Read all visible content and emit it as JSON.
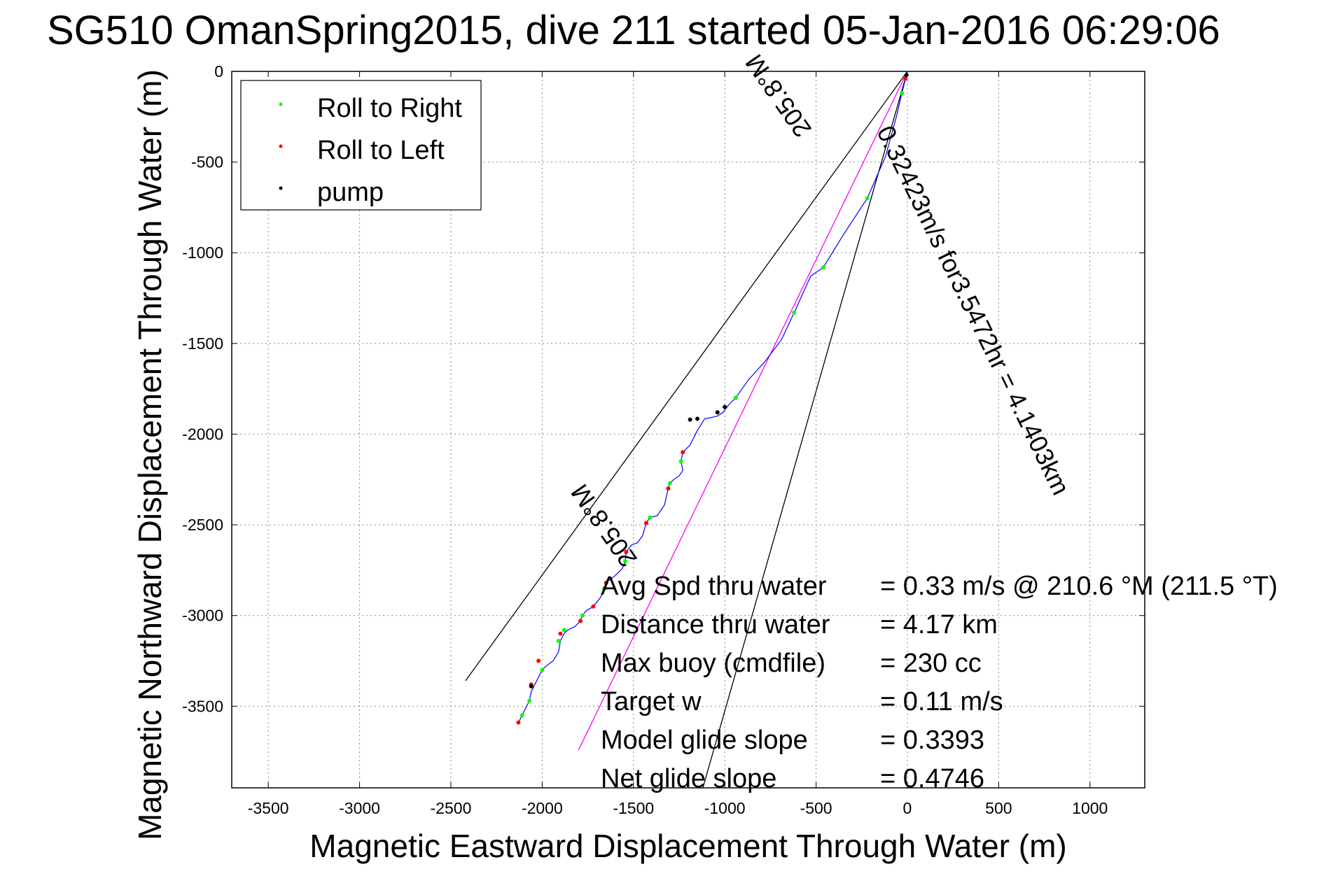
{
  "chart_data": {
    "type": "scatter",
    "title": "SG510 OmanSpring2015, dive 211 started 05-Jan-2016 06:29:06",
    "xlabel": "Magnetic Eastward Displacement Through Water (m)",
    "ylabel": "Magnetic Northward Displacement Through Water (m)",
    "xlim": [
      -3700,
      1300
    ],
    "ylim": [
      -3950,
      0
    ],
    "xticks": [
      -3500,
      -3000,
      -2500,
      -2000,
      -1500,
      -1000,
      -500,
      0,
      500,
      1000
    ],
    "yticks": [
      0,
      -500,
      -1000,
      -1500,
      -2000,
      -2500,
      -3000,
      -3500
    ],
    "grid": true,
    "legend_position": "top-left",
    "track": {
      "color": "#0000ff",
      "x": [
        0,
        -30,
        -60,
        -120,
        -220,
        -350,
        -460,
        -530,
        -620,
        -690,
        -780,
        -870,
        -940,
        -980,
        -1010,
        -1040,
        -1080,
        -1110,
        -1150,
        -1190,
        -1230,
        -1240,
        -1230,
        -1250,
        -1280,
        -1300,
        -1310,
        -1330,
        -1370,
        -1410,
        -1430,
        -1450,
        -1480,
        -1510,
        -1540,
        -1545,
        -1560,
        -1600,
        -1640,
        -1650,
        -1660,
        -1680,
        -1720,
        -1760,
        -1780,
        -1790,
        -1820,
        -1860,
        -1880,
        -1900,
        -1910,
        -1940,
        -1980,
        -2000,
        -2020,
        -2040,
        -2060,
        -2070,
        -2090,
        -2110,
        -2130
      ],
      "y": [
        0,
        -120,
        -250,
        -470,
        -700,
        -900,
        -1080,
        -1130,
        -1330,
        -1480,
        -1600,
        -1700,
        -1800,
        -1840,
        -1880,
        -1900,
        -1910,
        -1915,
        -1980,
        -2060,
        -2100,
        -2150,
        -2200,
        -2230,
        -2250,
        -2270,
        -2300,
        -2390,
        -2450,
        -2460,
        -2490,
        -2560,
        -2600,
        -2610,
        -2650,
        -2700,
        -2740,
        -2780,
        -2810,
        -2820,
        -2850,
        -2900,
        -2950,
        -2975,
        -3000,
        -3030,
        -3060,
        -3080,
        -3100,
        -3140,
        -3200,
        -3250,
        -3280,
        -3300,
        -3340,
        -3380,
        -3420,
        -3470,
        -3510,
        -3550,
        -3590
      ]
    },
    "series": [
      {
        "name": "Roll to Right",
        "color": "#00ff00",
        "x": [
          -30,
          -220,
          -460,
          -620,
          -940,
          -1240,
          -1300,
          -1410,
          -1545,
          -1660,
          -1780,
          -1880,
          -1910,
          -2000,
          -2070,
          -2110
        ],
        "y": [
          -120,
          -700,
          -1080,
          -1330,
          -1800,
          -2150,
          -2270,
          -2460,
          -2700,
          -2850,
          -3000,
          -3080,
          -3140,
          -3300,
          -3470,
          -3550
        ]
      },
      {
        "name": "Roll to Left",
        "color": "#ff0000",
        "x": [
          -10,
          -1230,
          -1310,
          -1430,
          -1540,
          -1650,
          -1720,
          -1790,
          -1900,
          -2020,
          -2060,
          -2130
        ],
        "y": [
          -40,
          -2100,
          -2300,
          -2490,
          -2650,
          -2820,
          -2950,
          -3030,
          -3100,
          -3250,
          -3380,
          -3590
        ]
      },
      {
        "name": "pump",
        "color": "#000000",
        "x": [
          -5,
          -1000,
          -1040,
          -1150,
          -1190,
          -2060
        ],
        "y": [
          -20,
          -1850,
          -1880,
          -1915,
          -1920,
          -3390
        ]
      }
    ],
    "lines": [
      {
        "name": "heading",
        "color": "#ff00ff",
        "x": [
          0,
          -1800
        ],
        "y": [
          0,
          -3740
        ]
      },
      {
        "name": "cone-left",
        "color": "#000000",
        "x": [
          0,
          -2420
        ],
        "y": [
          0,
          -3360
        ]
      },
      {
        "name": "cone-right",
        "color": "#000000",
        "x": [
          0,
          -1120
        ],
        "y": [
          0,
          -3950
        ]
      }
    ],
    "rotated_annotations": [
      {
        "text": "0.32423m/s for3.5472hr = 4.1403km",
        "x": -170,
        "y": -330,
        "angle": 64
      },
      {
        "text": "205.8°M",
        "x": -520,
        "y": -320,
        "angle": 235
      },
      {
        "text": "205.8°M",
        "x": -1475,
        "y": -2690,
        "angle": 235
      }
    ],
    "annotations": [
      {
        "label": "Avg Spd thru water",
        "value": "=  0.33 m/s @ 210.6 °M (211.5 °T)"
      },
      {
        "label": "Distance thru water",
        "value": "=  4.17 km"
      },
      {
        "label": "Max buoy (cmdfile)",
        "value": "= 230 cc"
      },
      {
        "label": "Target w",
        "value": "= 0.11 m/s"
      },
      {
        "label": "Model glide slope",
        "value": "= 0.3393"
      },
      {
        "label": "Net glide slope",
        "value": "= 0.4746"
      }
    ]
  }
}
